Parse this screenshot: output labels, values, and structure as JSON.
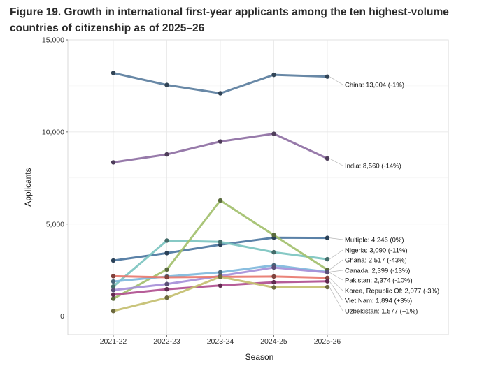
{
  "title": "Figure 19. Growth in international first-year applicants among the ten highest-volume countries of citizenship as of 2025–26",
  "chart_data": {
    "type": "line",
    "title": "Figure 19. Growth in international first-year applicants among the ten highest-volume countries of citizenship as of 2025–26",
    "xlabel": "Season",
    "ylabel": "Applicants",
    "categories": [
      "2021-22",
      "2022-23",
      "2023-24",
      "2024-25",
      "2025-26"
    ],
    "ylim": [
      -1000,
      15000
    ],
    "yticks": [
      0,
      5000,
      10000,
      15000
    ],
    "ytick_labels": [
      "0",
      "5,000",
      "10,000",
      "15,000"
    ],
    "grid": true,
    "series": [
      {
        "name": "China",
        "label": "China: 13,004 (-1%)",
        "color": "#5b7e9e",
        "values": [
          13200,
          12550,
          12100,
          13100,
          13004
        ]
      },
      {
        "name": "India",
        "label": "India: 8,560 (-14%)",
        "color": "#8e6fa3",
        "values": [
          8350,
          8780,
          9480,
          9900,
          8560
        ]
      },
      {
        "name": "Multiple",
        "label": "Multiple: 4,246 (0%)",
        "color": "#4c76a0",
        "values": [
          3020,
          3420,
          3880,
          4260,
          4246
        ]
      },
      {
        "name": "Nigeria",
        "label": "Nigeria: 3,090 (-11%)",
        "color": "#7cc4c0",
        "values": [
          1610,
          4100,
          4030,
          3470,
          3090
        ]
      },
      {
        "name": "Ghana",
        "label": "Ghana: 2,517 (-43%)",
        "color": "#a3c06e",
        "values": [
          950,
          2530,
          6280,
          4400,
          2517
        ]
      },
      {
        "name": "Canada",
        "label": "Canada: 2,399 (-13%)",
        "color": "#7fb8dc",
        "values": [
          1880,
          2150,
          2380,
          2760,
          2399
        ]
      },
      {
        "name": "Pakistan",
        "label": "Pakistan: 2,374 (-10%)",
        "color": "#a68fd8",
        "values": [
          1410,
          1740,
          2180,
          2640,
          2374
        ]
      },
      {
        "name": "Korea, Republic Of",
        "label": "Korea, Republic Of: 2,077 (-3%)",
        "color": "#e8786e",
        "values": [
          2170,
          2110,
          2130,
          2150,
          2077
        ]
      },
      {
        "name": "Viet Nam",
        "label": "Viet Nam: 1,894 (+3%)",
        "color": "#b04f8f",
        "values": [
          1160,
          1460,
          1660,
          1840,
          1894
        ]
      },
      {
        "name": "Uzbekistan",
        "label": "Uzbekistan: 1,577 (+1%)",
        "color": "#c4bf70",
        "values": [
          280,
          1000,
          2130,
          1560,
          1577
        ]
      }
    ]
  }
}
